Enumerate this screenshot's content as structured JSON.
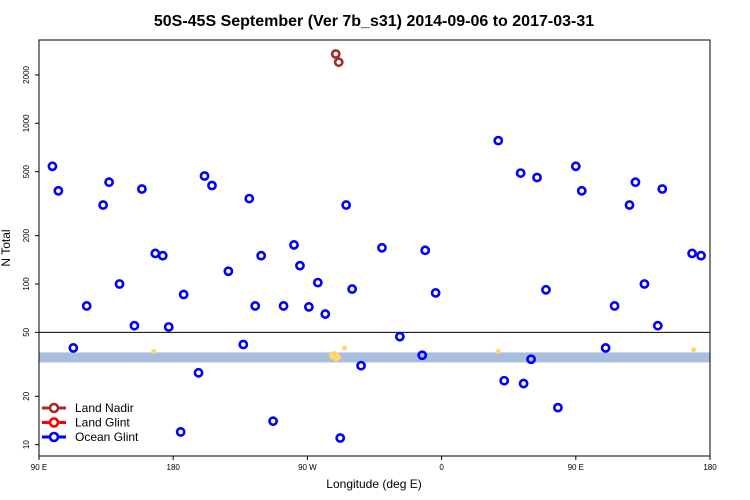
{
  "chart_data": {
    "type": "scatter",
    "title": "50S-45S September (Ver 7b_s31)   2014-09-06 to 2017-03-31",
    "xlabel": "Longitude (deg E)",
    "ylabel": "N Total",
    "y_scale": "log",
    "xlim": [
      90,
      540
    ],
    "ylim": [
      8.5,
      3300
    ],
    "x_ticks": [
      {
        "value": 90,
        "label": "90 E"
      },
      {
        "value": 180,
        "label": "180"
      },
      {
        "value": 270,
        "label": "90 W"
      },
      {
        "value": 360,
        "label": "0"
      },
      {
        "value": 450,
        "label": "90 E"
      },
      {
        "value": 540,
        "label": "180"
      }
    ],
    "y_ticks": [
      {
        "value": 10,
        "label": "10"
      },
      {
        "value": 20,
        "label": "20"
      },
      {
        "value": 50,
        "label": "50"
      },
      {
        "value": 100,
        "label": "100"
      },
      {
        "value": 200,
        "label": "200"
      },
      {
        "value": 500,
        "label": "500"
      },
      {
        "value": 1000,
        "label": "1000"
      },
      {
        "value": 2000,
        "label": "2000"
      }
    ],
    "reference_line": 50,
    "band": {
      "low": 32.5,
      "high": 37.5,
      "color": "#a8bedc"
    },
    "legend_position": "bottom-left",
    "series": [
      {
        "name": "Land Nadir",
        "color": "#a52a2a",
        "points": [
          [
            289,
            2700
          ],
          [
            291,
            2400
          ]
        ]
      },
      {
        "name": "Land Glint",
        "color": "#ff0000",
        "points": []
      },
      {
        "name": "Ocean Glint",
        "color": "#0000ff",
        "points": [
          [
            99,
            540
          ],
          [
            103,
            380
          ],
          [
            113,
            40
          ],
          [
            122,
            73
          ],
          [
            133,
            310
          ],
          [
            137,
            430
          ],
          [
            144,
            100
          ],
          [
            154,
            55
          ],
          [
            159,
            390
          ],
          [
            168,
            155
          ],
          [
            173,
            150
          ],
          [
            177,
            54
          ],
          [
            185,
            12
          ],
          [
            187,
            86
          ],
          [
            197,
            28
          ],
          [
            201,
            470
          ],
          [
            206,
            410
          ],
          [
            217,
            120
          ],
          [
            227,
            42
          ],
          [
            231,
            340
          ],
          [
            235,
            73
          ],
          [
            239,
            150
          ],
          [
            247,
            14
          ],
          [
            254,
            73
          ],
          [
            261,
            175
          ],
          [
            265,
            130
          ],
          [
            271,
            72
          ],
          [
            277,
            102
          ],
          [
            282,
            65
          ],
          [
            292,
            11
          ],
          [
            296,
            310
          ],
          [
            300,
            93
          ],
          [
            306,
            31
          ],
          [
            320,
            168
          ],
          [
            332,
            47
          ],
          [
            347,
            36
          ],
          [
            349,
            162
          ],
          [
            356,
            88
          ],
          [
            398,
            780
          ],
          [
            402,
            25
          ],
          [
            413,
            490
          ],
          [
            415,
            24
          ],
          [
            420,
            34
          ],
          [
            424,
            460
          ],
          [
            430,
            92
          ],
          [
            438,
            17
          ],
          [
            450,
            540
          ],
          [
            454,
            380
          ],
          [
            470,
            40
          ],
          [
            476,
            73
          ],
          [
            486,
            310
          ],
          [
            490,
            430
          ],
          [
            496,
            100
          ],
          [
            505,
            55
          ],
          [
            508,
            390
          ],
          [
            528,
            155
          ],
          [
            534,
            150
          ]
        ]
      }
    ],
    "minor_markers": {
      "color": "#ffd966",
      "points": [
        [
          167,
          38
        ],
        [
          286,
          36
        ],
        [
          288,
          37
        ],
        [
          290,
          36
        ],
        [
          289,
          34
        ],
        [
          291,
          35
        ],
        [
          287,
          35
        ],
        [
          295,
          40
        ],
        [
          398,
          38
        ],
        [
          529,
          39
        ]
      ]
    }
  }
}
